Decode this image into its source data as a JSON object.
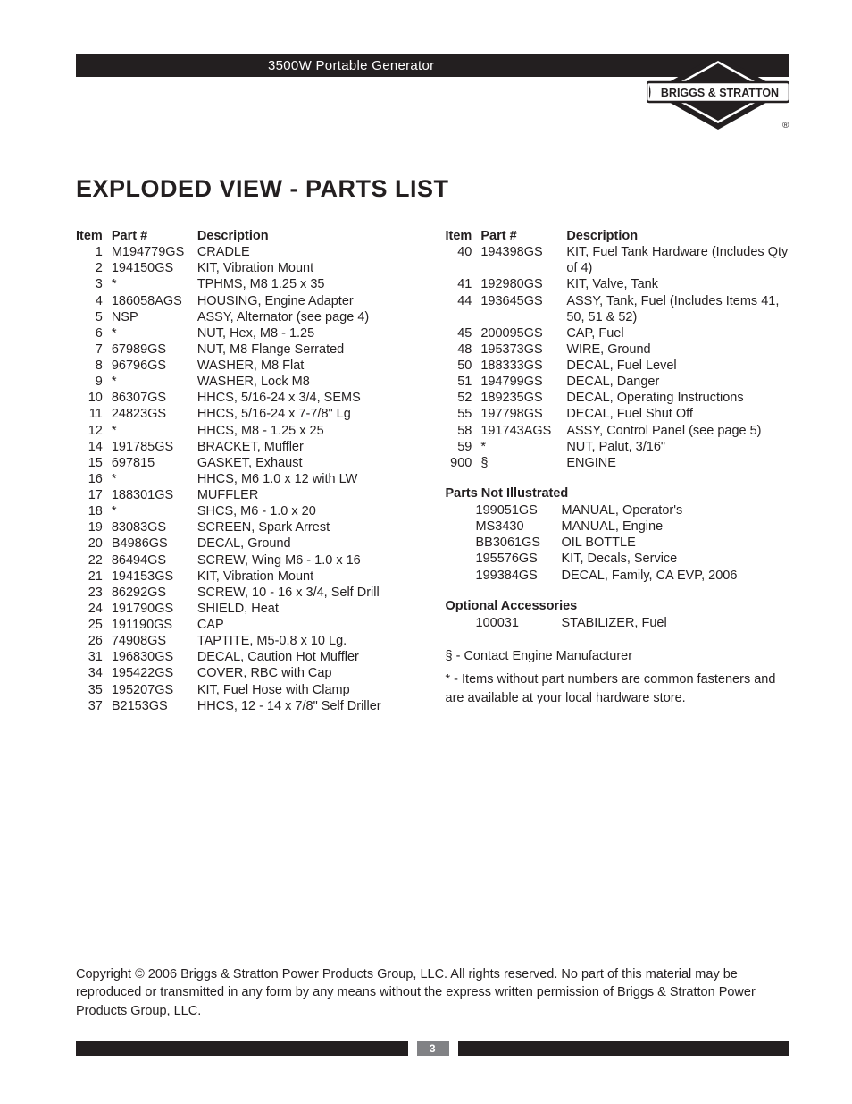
{
  "header": {
    "product_title": "3500W Portable Generator",
    "brand": "BRIGGS & STRATTON"
  },
  "page_title": "EXPLODED VIEW - PARTS LIST",
  "list_header": {
    "item": "Item",
    "part": "Part #",
    "desc": "Description"
  },
  "left_rows": [
    {
      "i": "1",
      "p": "M194779GS",
      "d": "CRADLE"
    },
    {
      "i": "2",
      "p": "194150GS",
      "d": "KIT, Vibration Mount"
    },
    {
      "i": "3",
      "p": "*",
      "d": "TPHMS, M8 1.25 x 35"
    },
    {
      "i": "4",
      "p": "186058AGS",
      "d": "HOUSING, Engine Adapter"
    },
    {
      "i": "5",
      "p": "NSP",
      "d": "ASSY, Alternator (see page 4)"
    },
    {
      "i": "6",
      "p": "*",
      "d": "NUT, Hex, M8 - 1.25"
    },
    {
      "i": "7",
      "p": "67989GS",
      "d": "NUT, M8 Flange Serrated"
    },
    {
      "i": "8",
      "p": "96796GS",
      "d": "WASHER, M8 Flat"
    },
    {
      "i": "9",
      "p": "*",
      "d": "WASHER, Lock M8"
    },
    {
      "i": "10",
      "p": "86307GS",
      "d": "HHCS, 5/16-24 x 3/4, SEMS"
    },
    {
      "i": "11",
      "p": "24823GS",
      "d": "HHCS, 5/16-24 x 7-7/8\" Lg"
    },
    {
      "i": "12",
      "p": "*",
      "d": "HHCS, M8 - 1.25 x 25"
    },
    {
      "i": "14",
      "p": "191785GS",
      "d": "BRACKET, Muffler"
    },
    {
      "i": "15",
      "p": "697815",
      "d": "GASKET, Exhaust"
    },
    {
      "i": "16",
      "p": "*",
      "d": "HHCS, M6 1.0 x 12 with LW"
    },
    {
      "i": "17",
      "p": "188301GS",
      "d": "MUFFLER"
    },
    {
      "i": "18",
      "p": "*",
      "d": "SHCS, M6 - 1.0 x 20"
    },
    {
      "i": "19",
      "p": "83083GS",
      "d": "SCREEN, Spark Arrest"
    },
    {
      "i": "20",
      "p": "B4986GS",
      "d": "DECAL, Ground"
    },
    {
      "i": "22",
      "p": "86494GS",
      "d": "SCREW, Wing M6 - 1.0 x 16"
    },
    {
      "i": "21",
      "p": "194153GS",
      "d": "KIT, Vibration Mount"
    },
    {
      "i": "23",
      "p": "86292GS",
      "d": "SCREW, 10 - 16 x 3/4, Self Drill"
    },
    {
      "i": "24",
      "p": "191790GS",
      "d": "SHIELD, Heat"
    },
    {
      "i": "25",
      "p": "191190GS",
      "d": "CAP"
    },
    {
      "i": "26",
      "p": "74908GS",
      "d": "TAPTITE, M5-0.8 x 10 Lg."
    },
    {
      "i": "31",
      "p": "196830GS",
      "d": "DECAL, Caution Hot Muffler"
    },
    {
      "i": "34",
      "p": "195422GS",
      "d": "COVER, RBC with Cap"
    },
    {
      "i": "35",
      "p": "195207GS",
      "d": "KIT, Fuel Hose with Clamp"
    },
    {
      "i": "37",
      "p": "B2153GS",
      "d": "HHCS, 12 - 14 x 7/8\" Self Driller"
    }
  ],
  "right_rows": [
    {
      "i": "40",
      "p": "194398GS",
      "d": "KIT, Fuel Tank Hardware (Includes Qty of 4)"
    },
    {
      "i": "41",
      "p": "192980GS",
      "d": "KIT, Valve, Tank"
    },
    {
      "i": "44",
      "p": "193645GS",
      "d": "ASSY, Tank, Fuel (Includes Items 41, 50, 51 & 52)"
    },
    {
      "i": "45",
      "p": "200095GS",
      "d": "CAP, Fuel"
    },
    {
      "i": "48",
      "p": "195373GS",
      "d": "WIRE, Ground"
    },
    {
      "i": "50",
      "p": "188333GS",
      "d": "DECAL, Fuel Level"
    },
    {
      "i": "51",
      "p": "194799GS",
      "d": "DECAL, Danger"
    },
    {
      "i": "52",
      "p": "189235GS",
      "d": "DECAL, Operating Instructions"
    },
    {
      "i": "55",
      "p": "197798GS",
      "d": "DECAL, Fuel Shut Off"
    },
    {
      "i": "58",
      "p": "191743AGS",
      "d": "ASSY, Control Panel (see page 5)"
    },
    {
      "i": "59",
      "p": "*",
      "d": "NUT, Palut, 3/16\""
    },
    {
      "i": "900",
      "p": "§",
      "d": "ENGINE"
    }
  ],
  "pni_title": "Parts Not Illustrated",
  "pni_rows": [
    {
      "p": "199051GS",
      "d": "MANUAL, Operator's"
    },
    {
      "p": "MS3430",
      "d": "MANUAL, Engine"
    },
    {
      "p": "BB3061GS",
      "d": "OIL BOTTLE"
    },
    {
      "p": "195576GS",
      "d": "KIT, Decals, Service"
    },
    {
      "p": "199384GS",
      "d": "DECAL, Family, CA EVP, 2006"
    }
  ],
  "acc_title": "Optional Accessories",
  "acc_rows": [
    {
      "p": "100031",
      "d": "STABILIZER, Fuel"
    }
  ],
  "notes": {
    "a": "§ - Contact Engine Manufacturer",
    "b": "* - Items without part numbers are common fasteners and are available at your local hardware store."
  },
  "copyright": "Copyright © 2006 Briggs & Stratton Power Products Group, LLC.  All rights reserved.  No part of this material may be reproduced or transmitted in any form by any means without the express written permission of Briggs & Stratton Power Products Group, LLC.",
  "page_number": "3",
  "colors": {
    "text": "#231f20",
    "bar": "#231f20",
    "page_tab": "#818285",
    "bg": "#ffffff"
  }
}
